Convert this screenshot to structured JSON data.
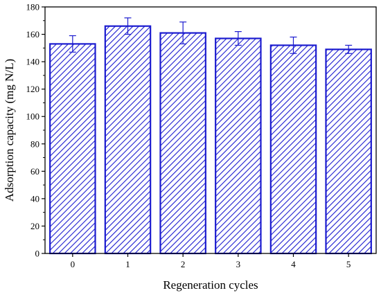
{
  "chart_data": {
    "type": "bar",
    "title": "",
    "xlabel": "Regeneration cycles",
    "ylabel": "Adsorption capacity (mg N/L)",
    "categories": [
      "0",
      "1",
      "2",
      "3",
      "4",
      "5"
    ],
    "values": [
      153,
      166,
      161,
      157,
      152,
      149
    ],
    "error": [
      6,
      6,
      8,
      5,
      6,
      3
    ],
    "ylim": [
      0,
      180
    ],
    "yticks": [
      0,
      20,
      40,
      60,
      80,
      100,
      120,
      140,
      160,
      180
    ],
    "ytick_labels": [
      "0",
      "20",
      "40",
      "60",
      "80",
      "100",
      "120",
      "140",
      "160",
      "180"
    ],
    "bar_fill": "hatched diagonal",
    "bar_color": "#1b1bcf",
    "error_color": "#1b1bcf",
    "grid": false,
    "legend": "none"
  }
}
